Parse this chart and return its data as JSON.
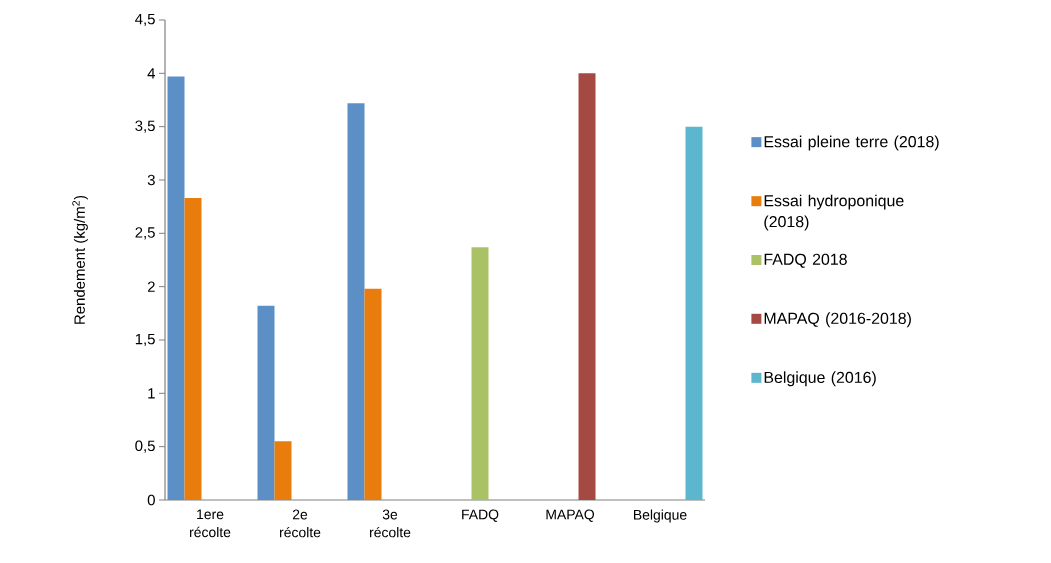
{
  "chart_data": {
    "type": "bar",
    "ylabel": "Rendement (kg/m$^{2}$)",
    "categories": [
      "1ere récolte",
      "2e récolte",
      "3e récolte",
      "FADQ",
      "MAPAQ",
      "Belgique"
    ],
    "series": [
      {
        "name": "Essai pleine terre (2018)",
        "color": "#5b8fc6",
        "values": [
          3.97,
          1.82,
          3.72,
          null,
          null,
          null
        ]
      },
      {
        "name": "Essai hydroponique (2018)",
        "color": "#e87d0d",
        "values": [
          2.83,
          0.55,
          1.98,
          null,
          null,
          null
        ]
      },
      {
        "name": "FADQ 2018",
        "color": "#aac265",
        "values": [
          null,
          null,
          null,
          2.37,
          null,
          null
        ]
      },
      {
        "name": "MAPAQ (2016-2018)",
        "color": "#a54a43",
        "values": [
          null,
          null,
          null,
          null,
          4.0,
          null
        ]
      },
      {
        "name": "Belgique (2016)",
        "color": "#5cb6cd",
        "values": [
          null,
          null,
          null,
          null,
          null,
          3.5
        ]
      }
    ],
    "ylim": [
      0,
      4.5
    ],
    "yticks": [
      0,
      {
        "value": 0.5,
        "label": "0,5"
      },
      1,
      {
        "value": 1.5,
        "label": "1,5"
      },
      2,
      {
        "value": 2.5,
        "label": "2,5"
      },
      3,
      {
        "value": 3.5,
        "label": "3,5"
      },
      4,
      {
        "value": 4.5,
        "label": "4,5"
      }
    ],
    "grid": false,
    "legend": "right"
  }
}
